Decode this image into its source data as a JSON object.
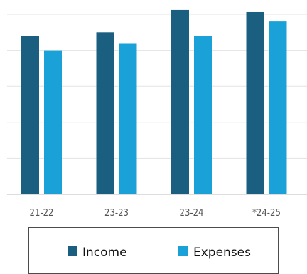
{
  "chart_data": {
    "type": "bar",
    "categories": [
      "21-22",
      "23-23",
      "23-24",
      "*24-25"
    ],
    "series": [
      {
        "name": "Income",
        "values": [
          220,
          225,
          256,
          253
        ],
        "color": "#1a5f80"
      },
      {
        "name": "Expenses",
        "values": [
          200,
          209,
          220,
          240
        ],
        "color": "#1aa1d8"
      }
    ],
    "title": "",
    "xlabel": "",
    "ylabel": "",
    "ylim": [
      0,
      250
    ],
    "grid": true,
    "axis_line_color": "#bbbbbb",
    "grid_color": "#e3e3e3",
    "legend_position": "bottom"
  }
}
